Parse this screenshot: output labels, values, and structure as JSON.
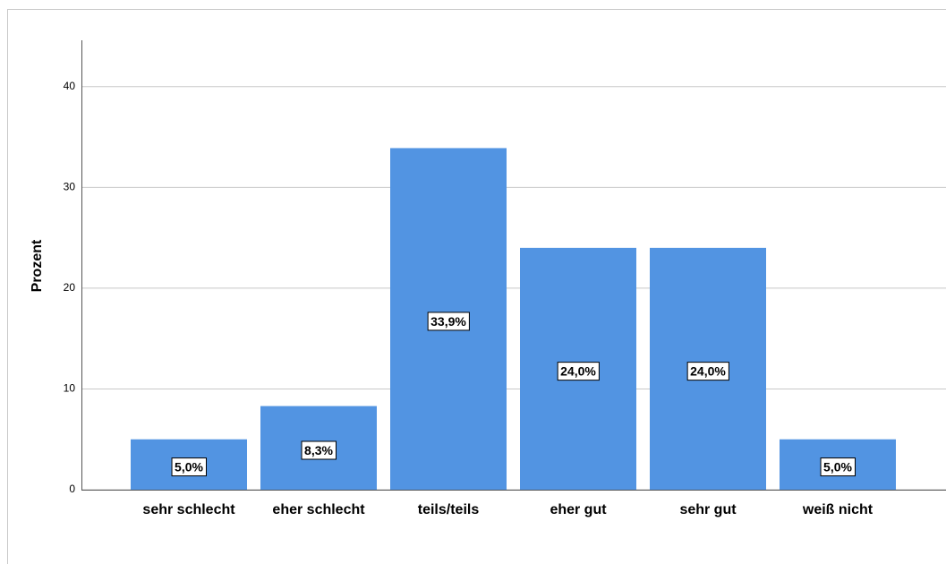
{
  "chart_data": {
    "type": "bar",
    "y_label": "Prozent",
    "categories": [
      "sehr schlecht",
      "eher schlecht",
      "teils/teils",
      "eher gut",
      "sehr gut",
      "weiß nicht"
    ],
    "values": [
      5.0,
      8.3,
      33.9,
      24.0,
      24.0,
      5.0
    ],
    "value_labels": [
      "5,0%",
      "8,3%",
      "33,9%",
      "24,0%",
      "24,0%",
      "5,0%"
    ],
    "color": "#5294e2",
    "ylim": [
      0,
      44.6
    ],
    "yticks": [
      0,
      10,
      20,
      30,
      40
    ],
    "grid": true
  }
}
